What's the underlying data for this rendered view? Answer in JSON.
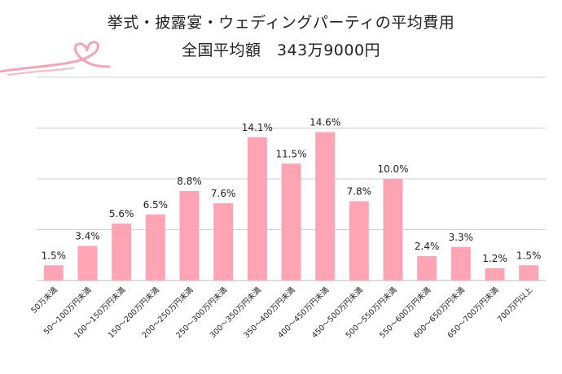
{
  "title_line1": "挙式・披露宴・ウェディングパーティの平均費用",
  "title_line2": "全国平均額　343万9000円",
  "colors": {
    "bar": "#FFA4B5",
    "grid": "#CFCFCF",
    "axis": "#BBBBBB",
    "text": "#222222",
    "ribbon": "#F7A3B6"
  },
  "chart_data": {
    "type": "bar",
    "title": "挙式・披露宴・ウェディングパーティの平均費用",
    "subtitle": "全国平均額　343万9000円",
    "xlabel": "",
    "ylabel": "",
    "ylim": [
      0,
      20
    ],
    "grid": true,
    "categories": [
      "50万未満",
      "50～100万円未満",
      "100～150万円未満",
      "150～200万円未満",
      "200～250万円未満",
      "250～300万円未満",
      "300～350万円未満",
      "350～400万円未満",
      "400～450万円未満",
      "450～500万円未満",
      "500～550万円未満",
      "550～600万円未満",
      "600～650万円未満",
      "650～700万円未満",
      "700万円以上"
    ],
    "values": [
      1.5,
      3.4,
      5.6,
      6.5,
      8.8,
      7.6,
      14.1,
      11.5,
      14.6,
      7.8,
      10.0,
      2.4,
      3.3,
      1.2,
      1.5
    ],
    "value_labels": [
      "1.5%",
      "3.4%",
      "5.6%",
      "6.5%",
      "8.8%",
      "7.6%",
      "14.1%",
      "11.5%",
      "14.6%",
      "7.8%",
      "10.0%",
      "2.4%",
      "3.3%",
      "1.2%",
      "1.5%"
    ]
  }
}
